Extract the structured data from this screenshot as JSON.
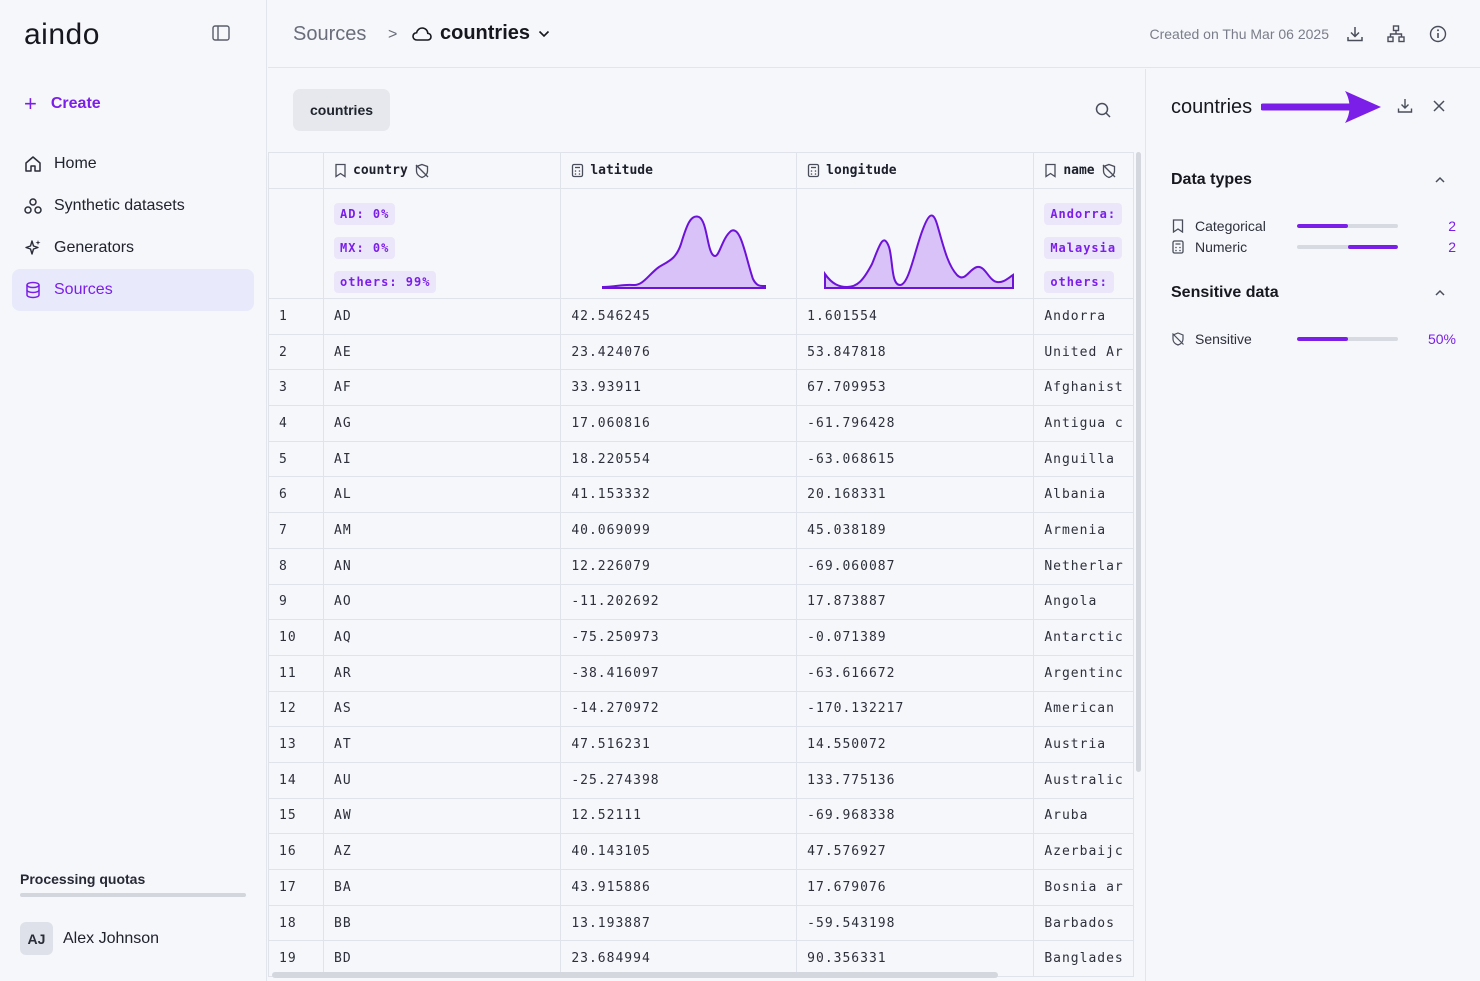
{
  "sidebar": {
    "logo": "aindo",
    "create_label": "Create",
    "nav": [
      {
        "label": "Home",
        "icon": "home-icon"
      },
      {
        "label": "Synthetic datasets",
        "icon": "datasets-icon"
      },
      {
        "label": "Generators",
        "icon": "sparkle-icon"
      },
      {
        "label": "Sources",
        "icon": "database-icon",
        "active": true
      }
    ],
    "quota_label": "Processing quotas",
    "user": {
      "initials": "AJ",
      "name": "Alex Johnson"
    }
  },
  "header": {
    "root": "Sources",
    "separator": ">",
    "current": "countries",
    "created": "Created on Thu Mar 06 2025"
  },
  "main": {
    "tab": "countries",
    "columns": [
      {
        "name": "country",
        "type": "categorical",
        "sensitive": true
      },
      {
        "name": "latitude",
        "type": "numeric"
      },
      {
        "name": "longitude",
        "type": "numeric"
      },
      {
        "name": "name",
        "type": "categorical",
        "sensitive": true
      }
    ],
    "country_chips": [
      "AD: 0%",
      "MX: 0%",
      "others: 99%"
    ],
    "name_chips": [
      "Andorra:",
      "Malaysia",
      "others:"
    ],
    "rows": [
      [
        "1",
        "AD",
        "42.546245",
        "1.601554",
        "Andorra"
      ],
      [
        "2",
        "AE",
        "23.424076",
        "53.847818",
        "United Ar"
      ],
      [
        "3",
        "AF",
        "33.93911",
        "67.709953",
        "Afghanist"
      ],
      [
        "4",
        "AG",
        "17.060816",
        "-61.796428",
        "Antigua c"
      ],
      [
        "5",
        "AI",
        "18.220554",
        "-63.068615",
        "Anguilla"
      ],
      [
        "6",
        "AL",
        "41.153332",
        "20.168331",
        "Albania"
      ],
      [
        "7",
        "AM",
        "40.069099",
        "45.038189",
        "Armenia"
      ],
      [
        "8",
        "AN",
        "12.226079",
        "-69.060087",
        "Netherlar"
      ],
      [
        "9",
        "AO",
        "-11.202692",
        "17.873887",
        "Angola"
      ],
      [
        "10",
        "AQ",
        "-75.250973",
        "-0.071389",
        "Antarctic"
      ],
      [
        "11",
        "AR",
        "-38.416097",
        "-63.616672",
        "Argentinc"
      ],
      [
        "12",
        "AS",
        "-14.270972",
        "-170.132217",
        "American"
      ],
      [
        "13",
        "AT",
        "47.516231",
        "14.550072",
        "Austria"
      ],
      [
        "14",
        "AU",
        "-25.274398",
        "133.775136",
        "Australic"
      ],
      [
        "15",
        "AW",
        "12.52111",
        "-69.968338",
        "Aruba"
      ],
      [
        "16",
        "AZ",
        "40.143105",
        "47.576927",
        "Azerbaijc"
      ],
      [
        "17",
        "BA",
        "43.915886",
        "17.679076",
        "Bosnia ar"
      ],
      [
        "18",
        "BB",
        "13.193887",
        "-59.543198",
        "Barbados"
      ],
      [
        "19",
        "BD",
        "23.684994",
        "90.356331",
        "Banglades"
      ]
    ]
  },
  "panel": {
    "title": "countries",
    "data_types_title": "Data types",
    "data_types": [
      {
        "label": "Categorical",
        "value": "2",
        "fill_start": 0.0,
        "fill": 0.5
      },
      {
        "label": "Numeric",
        "value": "2",
        "fill_start": 0.5,
        "fill": 0.5
      }
    ],
    "sensitive_title": "Sensitive data",
    "sensitive": {
      "label": "Sensitive",
      "value": "50%",
      "fill": 0.5
    }
  },
  "colors": {
    "accent": "#7b1fe8",
    "accent_light": "#ece6fb",
    "hist_fill": "#d9c2f8"
  }
}
